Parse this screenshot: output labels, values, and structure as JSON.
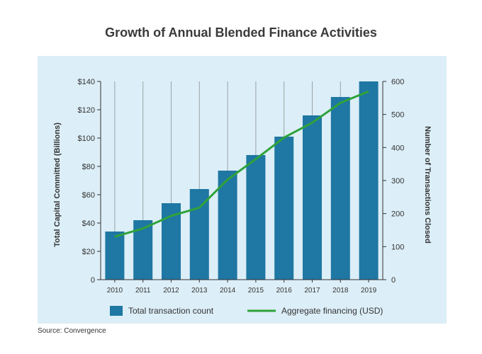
{
  "chart_data": {
    "type": "bar",
    "title": "Growth of Annual Blended Finance Activities",
    "categories": [
      "2010",
      "2011",
      "2012",
      "2013",
      "2014",
      "2015",
      "2016",
      "2017",
      "2018",
      "2019"
    ],
    "series": [
      {
        "name": "Total transaction count",
        "type": "bar",
        "axis": "left",
        "color": "#1f77a3",
        "values": [
          34,
          42,
          54,
          64,
          77,
          88,
          101,
          116,
          129,
          140
        ]
      },
      {
        "name": "Aggregate financing (USD)",
        "type": "line",
        "axis": "right",
        "color": "#2ea33a",
        "values": [
          130,
          155,
          193,
          218,
          303,
          365,
          430,
          475,
          535,
          570
        ]
      }
    ],
    "y_left": {
      "label": "Total Capital Committed (Billions)",
      "range": [
        0,
        140
      ],
      "ticks": [
        0,
        20,
        40,
        60,
        80,
        100,
        120,
        140
      ],
      "tick_labels": [
        "0",
        "$20",
        "$40",
        "$60",
        "$80",
        "$100",
        "$120",
        "$140"
      ]
    },
    "y_right": {
      "label": "Number of Transactions Closed",
      "range": [
        0,
        600
      ],
      "ticks": [
        0,
        100,
        200,
        300,
        400,
        500,
        600
      ],
      "tick_labels": [
        "0",
        "100",
        "200",
        "300",
        "400",
        "500",
        "600"
      ]
    },
    "grid": "vertical",
    "legend_position": "bottom",
    "background_color": "#dceef7"
  },
  "source": "Source: Convergence"
}
